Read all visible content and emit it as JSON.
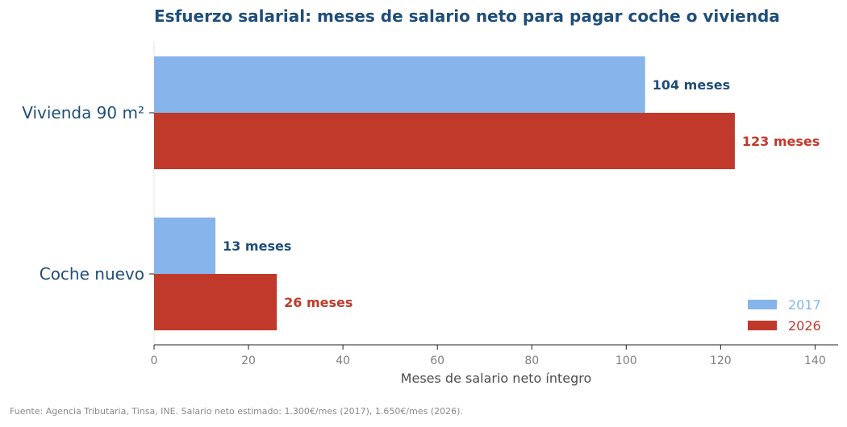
{
  "chart_data": {
    "type": "bar",
    "orientation": "horizontal",
    "title": "Esfuerzo salarial: meses de salario neto para pagar coche o vivienda",
    "xlabel": "Meses de salario neto íntegro",
    "ylabel": "",
    "xlim": [
      0,
      145
    ],
    "xticks": [
      0,
      20,
      40,
      60,
      80,
      100,
      120,
      140
    ],
    "categories": [
      "Vivienda 90 m²",
      "Coche nuevo"
    ],
    "series": [
      {
        "name": "2017",
        "color": "#85b5ea",
        "label_color": "#1f4e79",
        "values": [
          104,
          13
        ],
        "labels": [
          "104 meses",
          "13 meses"
        ]
      },
      {
        "name": "2026",
        "color": "#c0392b",
        "label_color": "#c0392b",
        "values": [
          123,
          26
        ],
        "labels": [
          "123 meses",
          "26 meses"
        ]
      }
    ],
    "legend_position": "bottom-right",
    "grid": false,
    "title_color": "#1f4e79",
    "category_label_color": "#1f4e79"
  },
  "source_note": "Fuente: Agencia Tributaria, Tinsa, INE. Salario neto estimado: 1.300€/mes (2017), 1.650€/mes (2026)."
}
